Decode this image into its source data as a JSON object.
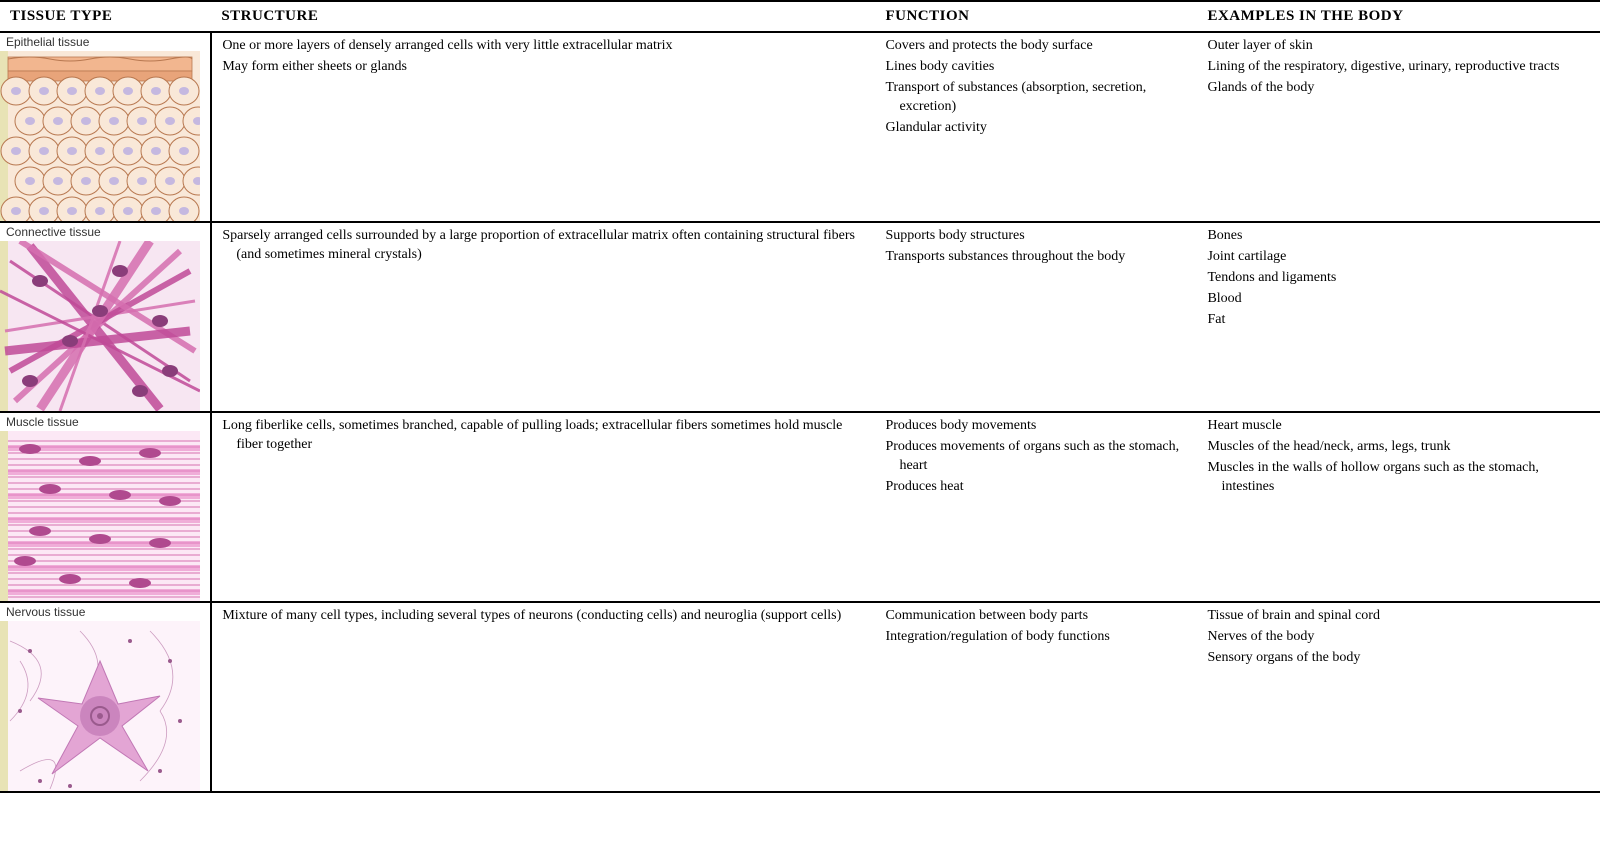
{
  "headers": {
    "tissue": "TISSUE TYPE",
    "structure": "STRUCTURE",
    "function": "FUNCTION",
    "examples": "EXAMPLES IN THE BODY"
  },
  "rows": [
    {
      "label": "Epithelial tissue",
      "structure": [
        "One or more layers of densely arranged cells with very little extracellular matrix",
        "May form either sheets or glands"
      ],
      "function": [
        "Covers and protects the body surface",
        "Lines body cavities",
        "Transport of substances (absorption, secretion, excretion)",
        "Glandular activity"
      ],
      "examples": [
        "Outer layer of skin",
        "Lining of the respiratory, digestive, urinary, reproductive tracts",
        "Glands of the body"
      ],
      "image": {
        "bg": "#f9e8d8",
        "accent1": "#f2b68f",
        "accent2": "#e8a47a",
        "nucleus": "#c5b8e0",
        "stroke": "#b87850"
      }
    },
    {
      "label": "Connective tissue",
      "structure": [
        "Sparsely arranged cells surrounded by a large proportion of extracellular matrix often containing structural fibers (and sometimes mineral crystals)"
      ],
      "function": [
        "Supports body structures",
        "Transports substances throughout the body"
      ],
      "examples": [
        "Bones",
        "Joint cartilage",
        "Tendons and ligaments",
        "Blood",
        "Fat"
      ],
      "image": {
        "bg": "#f7e6f2",
        "fiber1": "#d66fb0",
        "fiber2": "#c04a98",
        "cell": "#8a3d7a"
      }
    },
    {
      "label": "Muscle tissue",
      "structure": [
        "Long fiberlike cells, sometimes branched, capable of pulling loads; extracellular fibers sometimes hold muscle fiber together"
      ],
      "function": [
        "Produces body movements",
        "Produces movements of organs such as the stomach, heart",
        "Produces heat"
      ],
      "examples": [
        "Heart muscle",
        "Muscles of the head/neck, arms, legs, trunk",
        "Muscles in the walls of hollow organs such as the stomach, intestines"
      ],
      "image": {
        "bg": "#fce8f5",
        "fiber": "#e785c4",
        "nucleus": "#b04a8f",
        "stroke": "#d66fb0"
      }
    },
    {
      "label": "Nervous tissue",
      "structure": [
        "Mixture of many cell types, including several types of neurons (conducting cells) and neuroglia (support cells)"
      ],
      "function": [
        "Communication between body parts",
        "Integration/regulation of body functions"
      ],
      "examples": [
        "Tissue of brain and spinal cord",
        "Nerves of the body",
        "Sensory organs of the body"
      ],
      "image": {
        "bg": "#fdf3fa",
        "body": "#e3a5d4",
        "core": "#c178b5",
        "nucleus": "#9a5a8d",
        "fibers": "#b878a8"
      }
    }
  ],
  "sidebar_color": "#e8e3b5"
}
